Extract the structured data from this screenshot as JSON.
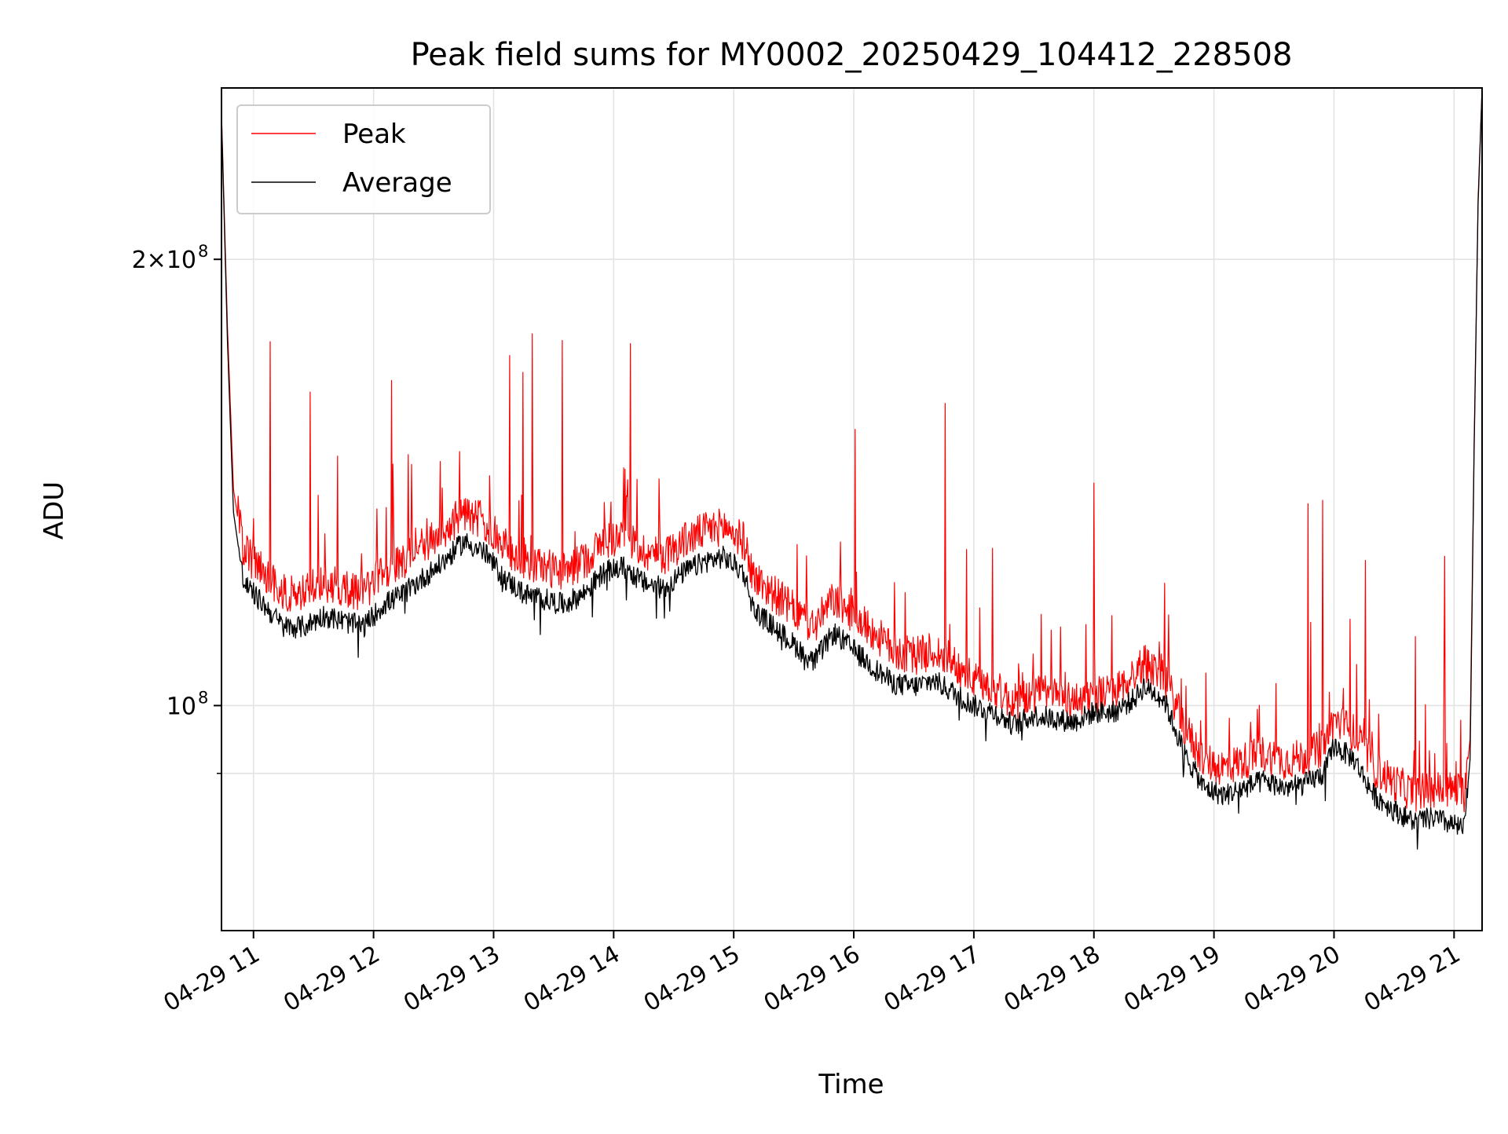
{
  "chart_data": {
    "type": "line",
    "title": "Peak field sums for MY0002_20250429_104412_228508",
    "xlabel": "Time",
    "ylabel": "ADU",
    "y_scale": "log",
    "ylim": [
      70500000,
      261000000
    ],
    "xlim": [
      "2025-04-29 10:44",
      "2025-04-29 21:14"
    ],
    "x_tick_values": [
      "2025-04-29 11:00",
      "2025-04-29 12:00",
      "2025-04-29 13:00",
      "2025-04-29 14:00",
      "2025-04-29 15:00",
      "2025-04-29 16:00",
      "2025-04-29 17:00",
      "2025-04-29 18:00",
      "2025-04-29 19:00",
      "2025-04-29 20:00",
      "2025-04-29 21:00"
    ],
    "x_tick_labels": [
      "04-29 11",
      "04-29 12",
      "04-29 13",
      "04-29 14",
      "04-29 15",
      "04-29 16",
      "04-29 17",
      "04-29 18",
      "04-29 19",
      "04-29 20",
      "04-29 21"
    ],
    "y_major_ticks": [
      {
        "value": 100000000,
        "base": "10",
        "exp": "8"
      },
      {
        "value": 200000000,
        "base": "2×10",
        "exp": "8"
      }
    ],
    "y_minor_ticks": [
      90000000
    ],
    "grid": true,
    "legend_position": "upper-left",
    "series": [
      {
        "name": "Peak",
        "color": "#ff0000",
        "points": [
          [
            "2025-04-29 10:44",
            252000000
          ],
          [
            "2025-04-29 10:47",
            180000000
          ],
          [
            "2025-04-29 10:50",
            140000000
          ],
          [
            "2025-04-29 10:55",
            126000000
          ],
          [
            "2025-04-29 11:05",
            122000000
          ],
          [
            "2025-04-29 11:15",
            118000000
          ],
          [
            "2025-04-29 11:25",
            118000000
          ],
          [
            "2025-04-29 11:35",
            120000000
          ],
          [
            "2025-04-29 11:45",
            119000000
          ],
          [
            "2025-04-29 11:55",
            118000000
          ],
          [
            "2025-04-29 12:05",
            122000000
          ],
          [
            "2025-04-29 12:15",
            124000000
          ],
          [
            "2025-04-29 12:25",
            127000000
          ],
          [
            "2025-04-29 12:35",
            130000000
          ],
          [
            "2025-04-29 12:45",
            134000000
          ],
          [
            "2025-04-29 12:55",
            132000000
          ],
          [
            "2025-04-29 13:05",
            127000000
          ],
          [
            "2025-04-29 13:15",
            124000000
          ],
          [
            "2025-04-29 13:25",
            123000000
          ],
          [
            "2025-04-29 13:35",
            122000000
          ],
          [
            "2025-04-29 13:45",
            124000000
          ],
          [
            "2025-04-29 13:55",
            128000000
          ],
          [
            "2025-04-29 14:05",
            129000000
          ],
          [
            "2025-04-29 14:15",
            126000000
          ],
          [
            "2025-04-29 14:25",
            125000000
          ],
          [
            "2025-04-29 14:35",
            128000000
          ],
          [
            "2025-04-29 14:45",
            130000000
          ],
          [
            "2025-04-29 14:55",
            131000000
          ],
          [
            "2025-04-29 15:05",
            128000000
          ],
          [
            "2025-04-29 15:10",
            121000000
          ],
          [
            "2025-04-29 15:20",
            118000000
          ],
          [
            "2025-04-29 15:30",
            115000000
          ],
          [
            "2025-04-29 15:40",
            112000000
          ],
          [
            "2025-04-29 15:50",
            117000000
          ],
          [
            "2025-04-29 16:00",
            114000000
          ],
          [
            "2025-04-29 16:10",
            111000000
          ],
          [
            "2025-04-29 16:20",
            108000000
          ],
          [
            "2025-04-29 16:30",
            107000000
          ],
          [
            "2025-04-29 16:40",
            108000000
          ],
          [
            "2025-04-29 16:50",
            106000000
          ],
          [
            "2025-04-29 17:00",
            103000000
          ],
          [
            "2025-04-29 17:10",
            102000000
          ],
          [
            "2025-04-29 17:20",
            99500000
          ],
          [
            "2025-04-29 17:30",
            101000000
          ],
          [
            "2025-04-29 17:40",
            101000000
          ],
          [
            "2025-04-29 17:50",
            99800000
          ],
          [
            "2025-04-29 18:00",
            101000000
          ],
          [
            "2025-04-29 18:10",
            101000000
          ],
          [
            "2025-04-29 18:20",
            104000000
          ],
          [
            "2025-04-29 18:25",
            106000000
          ],
          [
            "2025-04-29 18:35",
            104000000
          ],
          [
            "2025-04-29 18:45",
            96000000
          ],
          [
            "2025-04-29 18:55",
            91000000
          ],
          [
            "2025-04-29 19:05",
            90000000
          ],
          [
            "2025-04-29 19:15",
            91000000
          ],
          [
            "2025-04-29 19:25",
            92000000
          ],
          [
            "2025-04-29 19:35",
            91000000
          ],
          [
            "2025-04-29 19:45",
            91500000
          ],
          [
            "2025-04-29 19:55",
            93000000
          ],
          [
            "2025-04-29 20:00",
            97000000
          ],
          [
            "2025-04-29 20:10",
            95000000
          ],
          [
            "2025-04-29 20:20",
            90000000
          ],
          [
            "2025-04-29 20:30",
            88000000
          ],
          [
            "2025-04-29 20:40",
            86500000
          ],
          [
            "2025-04-29 20:50",
            87000000
          ],
          [
            "2025-04-29 21:00",
            87000000
          ],
          [
            "2025-04-29 21:05",
            86500000
          ],
          [
            "2025-04-29 21:08",
            95000000
          ],
          [
            "2025-04-29 21:10",
            150000000
          ],
          [
            "2025-04-29 21:12",
            220000000
          ],
          [
            "2025-04-29 21:14",
            261000000
          ]
        ]
      },
      {
        "name": "Average",
        "color": "#000000",
        "points": [
          [
            "2025-04-29 10:44",
            250000000
          ],
          [
            "2025-04-29 10:47",
            176000000
          ],
          [
            "2025-04-29 10:50",
            135000000
          ],
          [
            "2025-04-29 10:55",
            121000000
          ],
          [
            "2025-04-29 11:05",
            117000000
          ],
          [
            "2025-04-29 11:15",
            113000000
          ],
          [
            "2025-04-29 11:25",
            113000000
          ],
          [
            "2025-04-29 11:35",
            115000000
          ],
          [
            "2025-04-29 11:45",
            114000000
          ],
          [
            "2025-04-29 11:55",
            113000000
          ],
          [
            "2025-04-29 12:05",
            117000000
          ],
          [
            "2025-04-29 12:15",
            119000000
          ],
          [
            "2025-04-29 12:25",
            122000000
          ],
          [
            "2025-04-29 12:35",
            125000000
          ],
          [
            "2025-04-29 12:45",
            129000000
          ],
          [
            "2025-04-29 12:55",
            127000000
          ],
          [
            "2025-04-29 13:05",
            122000000
          ],
          [
            "2025-04-29 13:15",
            119000000
          ],
          [
            "2025-04-29 13:25",
            118000000
          ],
          [
            "2025-04-29 13:35",
            117000000
          ],
          [
            "2025-04-29 13:45",
            119000000
          ],
          [
            "2025-04-29 13:55",
            123000000
          ],
          [
            "2025-04-29 14:05",
            124000000
          ],
          [
            "2025-04-29 14:15",
            121000000
          ],
          [
            "2025-04-29 14:25",
            120000000
          ],
          [
            "2025-04-29 14:35",
            123000000
          ],
          [
            "2025-04-29 14:45",
            125000000
          ],
          [
            "2025-04-29 14:55",
            126000000
          ],
          [
            "2025-04-29 15:05",
            123000000
          ],
          [
            "2025-04-29 15:10",
            116000000
          ],
          [
            "2025-04-29 15:20",
            113000000
          ],
          [
            "2025-04-29 15:30",
            110000000
          ],
          [
            "2025-04-29 15:40",
            107000000
          ],
          [
            "2025-04-29 15:50",
            112000000
          ],
          [
            "2025-04-29 16:00",
            109000000
          ],
          [
            "2025-04-29 16:10",
            106000000
          ],
          [
            "2025-04-29 16:20",
            103500000
          ],
          [
            "2025-04-29 16:30",
            103000000
          ],
          [
            "2025-04-29 16:40",
            104000000
          ],
          [
            "2025-04-29 16:50",
            102000000
          ],
          [
            "2025-04-29 17:00",
            100000000
          ],
          [
            "2025-04-29 17:10",
            99000000
          ],
          [
            "2025-04-29 17:20",
            97000000
          ],
          [
            "2025-04-29 17:30",
            98500000
          ],
          [
            "2025-04-29 17:40",
            98000000
          ],
          [
            "2025-04-29 17:50",
            97500000
          ],
          [
            "2025-04-29 18:00",
            99000000
          ],
          [
            "2025-04-29 18:10",
            99000000
          ],
          [
            "2025-04-29 18:20",
            101000000
          ],
          [
            "2025-04-29 18:25",
            103000000
          ],
          [
            "2025-04-29 18:35",
            101000000
          ],
          [
            "2025-04-29 18:45",
            93000000
          ],
          [
            "2025-04-29 18:55",
            88000000
          ],
          [
            "2025-04-29 19:05",
            87000000
          ],
          [
            "2025-04-29 19:15",
            88000000
          ],
          [
            "2025-04-29 19:25",
            89000000
          ],
          [
            "2025-04-29 19:35",
            88000000
          ],
          [
            "2025-04-29 19:45",
            88500000
          ],
          [
            "2025-04-29 19:55",
            90000000
          ],
          [
            "2025-04-29 20:00",
            94000000
          ],
          [
            "2025-04-29 20:10",
            92000000
          ],
          [
            "2025-04-29 20:20",
            87000000
          ],
          [
            "2025-04-29 20:30",
            85000000
          ],
          [
            "2025-04-29 20:40",
            83500000
          ],
          [
            "2025-04-29 20:50",
            84000000
          ],
          [
            "2025-04-29 21:00",
            83000000
          ],
          [
            "2025-04-29 21:05",
            82500000
          ],
          [
            "2025-04-29 21:08",
            92000000
          ],
          [
            "2025-04-29 21:10",
            148000000
          ],
          [
            "2025-04-29 21:12",
            218000000
          ],
          [
            "2025-04-29 21:14",
            261000000
          ]
        ]
      }
    ]
  }
}
